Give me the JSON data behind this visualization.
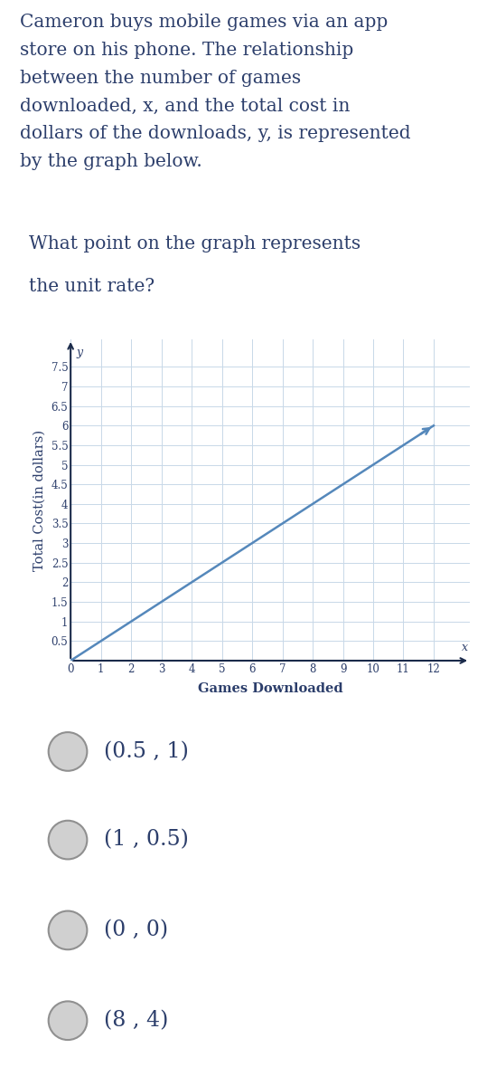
{
  "paragraph_lines": [
    "Cameron buys mobile games via an app",
    "store on his phone. The relationship",
    "between the number of games",
    "downloaded, x, and the total cost in",
    "dollars of the downloads, y, is represented",
    "by the graph below."
  ],
  "question_lines": [
    "What point on the graph represents",
    "the unit rate?"
  ],
  "xlabel": "Games Downloaded",
  "ylabel": "Total Cost(in dollars)",
  "x_label_axis": "x",
  "y_label_axis": "y",
  "xlim": [
    0,
    13.2
  ],
  "ylim": [
    0,
    8.2
  ],
  "xticks": [
    0,
    1,
    2,
    3,
    4,
    5,
    6,
    7,
    8,
    9,
    10,
    11,
    12
  ],
  "yticks": [
    0,
    0.5,
    1,
    1.5,
    2,
    2.5,
    3,
    3.5,
    4,
    4.5,
    5,
    5.5,
    6,
    6.5,
    7,
    7.5
  ],
  "line_x": [
    0,
    12
  ],
  "line_y": [
    0,
    6
  ],
  "line_color": "#5588bb",
  "arrow_color": "#5588bb",
  "grid_color": "#c8d8e8",
  "axis_color": "#1a2a4a",
  "text_color": "#2c3e6b",
  "bg_color": "#ffffff",
  "choices_bg": "#e8e8e8",
  "choices": [
    "(0.5 , 1)",
    "(1 , 0.5)",
    "(0 , 0)",
    "(8 , 4)"
  ],
  "para_fontsize": 14.5,
  "question_fontsize": 14.5,
  "choice_fontsize": 17,
  "axis_tick_fontsize": 8.5,
  "axis_label_fontsize": 10.5
}
